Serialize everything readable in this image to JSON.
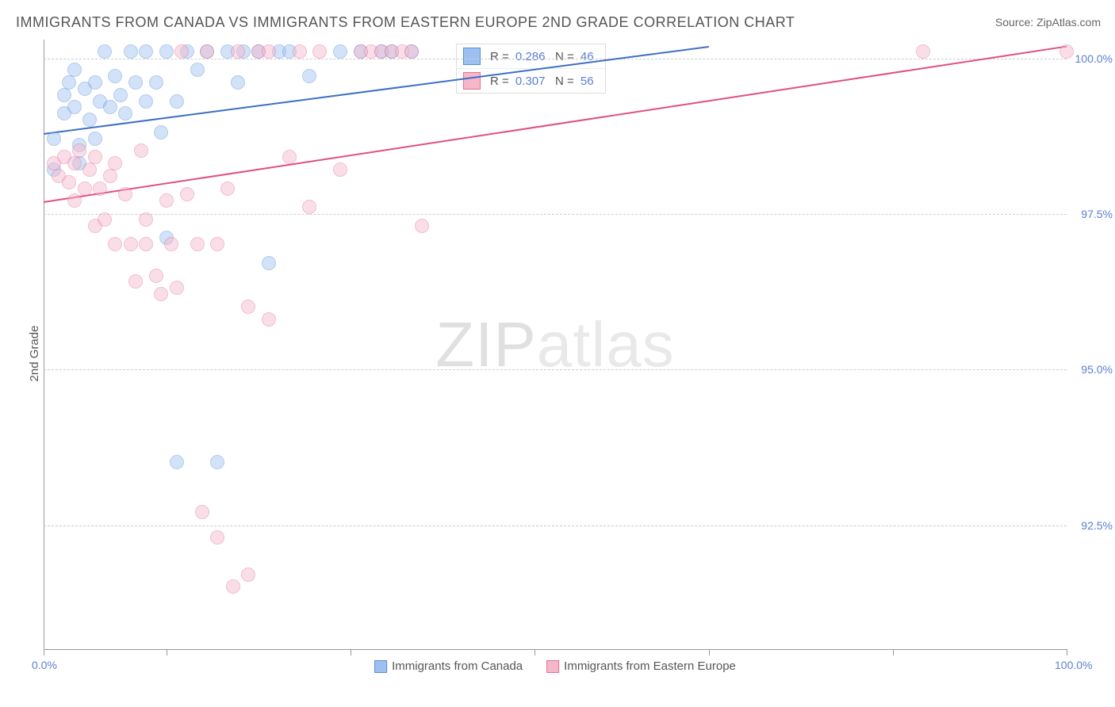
{
  "title": "IMMIGRANTS FROM CANADA VS IMMIGRANTS FROM EASTERN EUROPE 2ND GRADE CORRELATION CHART",
  "source": "Source: ZipAtlas.com",
  "ylabel": "2nd Grade",
  "watermark_bold": "ZIP",
  "watermark_light": "atlas",
  "chart": {
    "type": "scatter",
    "background_color": "#ffffff",
    "grid_color": "#cccccc",
    "axis_color": "#999999",
    "xlim": [
      0,
      100
    ],
    "ylim": [
      90.5,
      100.3
    ],
    "yticks": [
      92.5,
      95.0,
      97.5,
      100.0
    ],
    "ytick_labels": [
      "92.5%",
      "95.0%",
      "97.5%",
      "100.0%"
    ],
    "xtick_positions": [
      0,
      12,
      30,
      48,
      65,
      83,
      100
    ],
    "xtick_labels": {
      "0": "0.0%",
      "100": "100.0%"
    },
    "marker_radius": 9,
    "marker_opacity": 0.45,
    "line_width": 2,
    "label_fontsize": 14,
    "label_color": "#5b7fd1",
    "series": [
      {
        "name": "Immigrants from Canada",
        "fill_color": "#9dc0f0",
        "stroke_color": "#5a8fd6",
        "line_color": "#3d6fc4",
        "R": "0.286",
        "N": "46",
        "regression": {
          "x1": 0,
          "y1": 98.8,
          "x2": 65,
          "y2": 100.2
        },
        "points": [
          [
            1,
            98.2
          ],
          [
            1,
            98.7
          ],
          [
            2,
            99.4
          ],
          [
            2,
            99.1
          ],
          [
            2.5,
            99.6
          ],
          [
            3,
            99.2
          ],
          [
            3,
            99.8
          ],
          [
            3.5,
            98.6
          ],
          [
            3.5,
            98.3
          ],
          [
            4,
            99.5
          ],
          [
            4.5,
            99.0
          ],
          [
            5,
            99.6
          ],
          [
            5,
            98.7
          ],
          [
            5.5,
            99.3
          ],
          [
            6,
            100.1
          ],
          [
            6.5,
            99.2
          ],
          [
            7,
            99.7
          ],
          [
            7.5,
            99.4
          ],
          [
            8,
            99.1
          ],
          [
            8.5,
            100.1
          ],
          [
            9,
            99.6
          ],
          [
            10,
            99.3
          ],
          [
            10,
            100.1
          ],
          [
            11,
            99.6
          ],
          [
            11.5,
            98.8
          ],
          [
            12,
            100.1
          ],
          [
            12,
            97.1
          ],
          [
            13,
            99.3
          ],
          [
            13,
            93.5
          ],
          [
            14,
            100.1
          ],
          [
            15,
            99.8
          ],
          [
            16,
            100.1
          ],
          [
            17,
            93.5
          ],
          [
            18,
            100.1
          ],
          [
            19,
            99.6
          ],
          [
            19.5,
            100.1
          ],
          [
            21,
            100.1
          ],
          [
            22,
            96.7
          ],
          [
            23,
            100.1
          ],
          [
            24,
            100.1
          ],
          [
            26,
            99.7
          ],
          [
            29,
            100.1
          ],
          [
            31,
            100.1
          ],
          [
            33,
            100.1
          ],
          [
            34,
            100.1
          ],
          [
            36,
            100.1
          ]
        ]
      },
      {
        "name": "Immigrants from Eastern Europe",
        "fill_color": "#f5b8cb",
        "stroke_color": "#e56f96",
        "line_color": "#e0507e",
        "R": "0.307",
        "N": "56",
        "regression": {
          "x1": 0,
          "y1": 97.7,
          "x2": 100,
          "y2": 100.2
        },
        "points": [
          [
            1,
            98.3
          ],
          [
            1.5,
            98.1
          ],
          [
            2,
            98.4
          ],
          [
            2.5,
            98.0
          ],
          [
            3,
            98.3
          ],
          [
            3,
            97.7
          ],
          [
            3.5,
            98.5
          ],
          [
            4,
            97.9
          ],
          [
            4.5,
            98.2
          ],
          [
            5,
            98.4
          ],
          [
            5,
            97.3
          ],
          [
            5.5,
            97.9
          ],
          [
            6,
            97.4
          ],
          [
            6.5,
            98.1
          ],
          [
            7,
            98.3
          ],
          [
            7,
            97.0
          ],
          [
            8,
            97.8
          ],
          [
            8.5,
            97.0
          ],
          [
            9,
            96.4
          ],
          [
            9.5,
            98.5
          ],
          [
            10,
            97.4
          ],
          [
            10,
            97.0
          ],
          [
            11,
            96.5
          ],
          [
            11.5,
            96.2
          ],
          [
            12,
            97.7
          ],
          [
            12.5,
            97.0
          ],
          [
            13,
            96.3
          ],
          [
            13.5,
            100.1
          ],
          [
            14,
            97.8
          ],
          [
            15,
            97.0
          ],
          [
            15.5,
            92.7
          ],
          [
            16,
            100.1
          ],
          [
            17,
            97.0
          ],
          [
            17,
            92.3
          ],
          [
            18,
            97.9
          ],
          [
            18.5,
            91.5
          ],
          [
            19,
            100.1
          ],
          [
            20,
            96.0
          ],
          [
            20,
            91.7
          ],
          [
            21,
            100.1
          ],
          [
            22,
            100.1
          ],
          [
            22,
            95.8
          ],
          [
            24,
            98.4
          ],
          [
            25,
            100.1
          ],
          [
            26,
            97.6
          ],
          [
            27,
            100.1
          ],
          [
            29,
            98.2
          ],
          [
            31,
            100.1
          ],
          [
            32,
            100.1
          ],
          [
            33,
            100.1
          ],
          [
            34,
            100.1
          ],
          [
            35,
            100.1
          ],
          [
            36,
            100.1
          ],
          [
            37,
            97.3
          ],
          [
            86,
            100.1
          ],
          [
            100,
            100.1
          ]
        ]
      }
    ]
  }
}
